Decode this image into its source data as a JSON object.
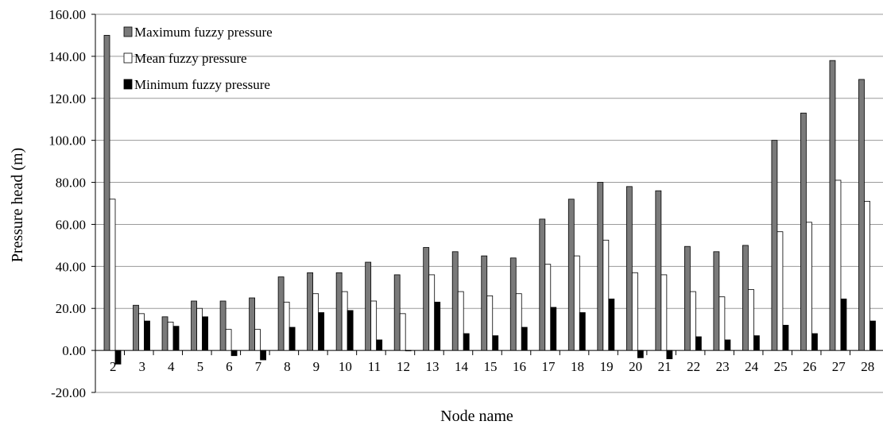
{
  "chart_data": {
    "type": "bar",
    "title": "",
    "xlabel": "Node name",
    "ylabel": "Pressure head (m)",
    "ylim": [
      -20,
      160
    ],
    "yticks": [
      "-20.00",
      "0.00",
      "20.00",
      "40.00",
      "60.00",
      "80.00",
      "100.00",
      "120.00",
      "140.00",
      "160.00"
    ],
    "grid": "horizontal",
    "legend_position": "top-left",
    "categories": [
      "2",
      "3",
      "4",
      "5",
      "6",
      "7",
      "8",
      "9",
      "10",
      "11",
      "12",
      "13",
      "14",
      "15",
      "16",
      "17",
      "18",
      "19",
      "20",
      "21",
      "22",
      "23",
      "24",
      "25",
      "26",
      "27",
      "28"
    ],
    "series": [
      {
        "name": "Maximum fuzzy pressure",
        "color": "#7a7a7a",
        "values": [
          150,
          21.5,
          16,
          23.5,
          23.5,
          25,
          35,
          37,
          37,
          42,
          36,
          49,
          47,
          45,
          44,
          62.5,
          72,
          80,
          78,
          76,
          49.5,
          47,
          50,
          100,
          113,
          138,
          129
        ]
      },
      {
        "name": "Mean fuzzy pressure",
        "color": "#ffffff",
        "values": [
          72,
          17.5,
          13.5,
          20,
          10,
          10,
          23,
          27,
          28,
          23.5,
          17.5,
          36,
          28,
          26,
          27,
          41,
          45,
          52.5,
          37,
          36,
          28,
          25.5,
          29,
          56.5,
          61,
          81,
          71
        ]
      },
      {
        "name": "Minimum fuzzy pressure",
        "color": "#000000",
        "values": [
          -6.5,
          14,
          11.5,
          16,
          -2.5,
          -4.5,
          11,
          18,
          19,
          5,
          0,
          23,
          8,
          7,
          11,
          20.5,
          18,
          24.5,
          -3.5,
          -4,
          6.5,
          5,
          7,
          12,
          8,
          24.5,
          14
        ]
      }
    ]
  }
}
